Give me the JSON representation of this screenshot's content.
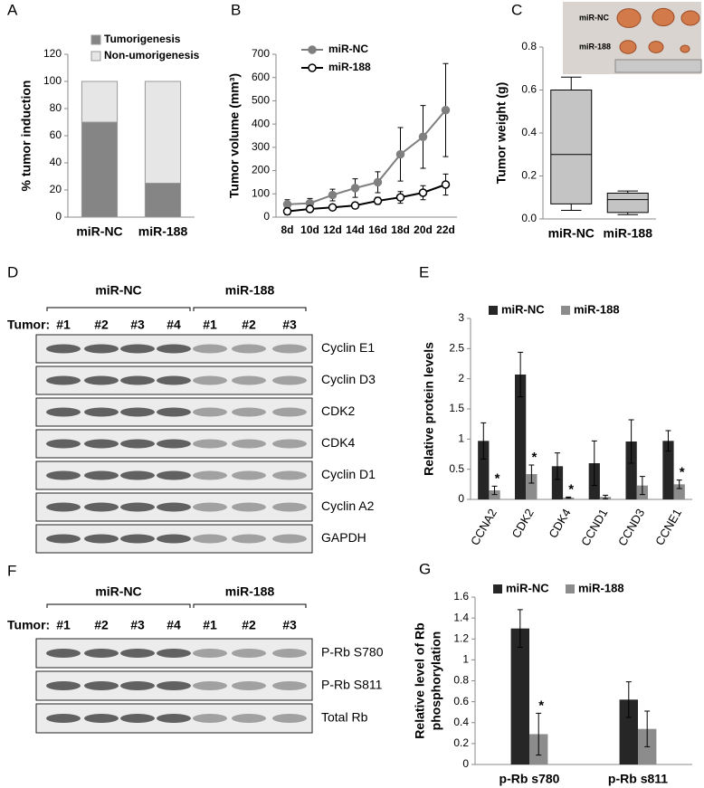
{
  "chart_data": [
    {
      "type": "stacked_bar",
      "panel_label": "A",
      "ylabel": "% tumor induction",
      "categories": [
        "miR-NC",
        "miR-188"
      ],
      "series": [
        {
          "name": "Tumorigenesis",
          "color": "#858585",
          "values": [
            70,
            25
          ]
        },
        {
          "name": "Non-umorigenesis",
          "color": "#e6e6e6",
          "values": [
            30,
            75
          ]
        }
      ],
      "ylim": [
        0,
        120
      ],
      "yticks": [
        0,
        20,
        40,
        60,
        80,
        100,
        120
      ]
    },
    {
      "type": "line",
      "panel_label": "B",
      "ylabel": "Tumor volume (mm³)",
      "categories": [
        "8d",
        "10d",
        "12d",
        "14d",
        "16d",
        "18d",
        "20d",
        "22d"
      ],
      "series": [
        {
          "name": "miR-NC",
          "color": "#7f7f7f",
          "marker_fill": "#7f7f7f",
          "values": [
            55,
            60,
            95,
            125,
            150,
            270,
            345,
            460
          ],
          "errors": [
            20,
            20,
            25,
            40,
            45,
            115,
            135,
            200
          ]
        },
        {
          "name": "miR-188",
          "color": "#000000",
          "marker_fill": "#ffffff",
          "values": [
            25,
            35,
            42,
            50,
            70,
            85,
            105,
            140
          ],
          "errors": [
            15,
            12,
            12,
            12,
            15,
            25,
            30,
            45
          ]
        }
      ],
      "ylim": [
        0,
        700
      ],
      "yticks": [
        0,
        100,
        200,
        300,
        400,
        500,
        600,
        700
      ]
    },
    {
      "type": "box",
      "panel_label": "C",
      "ylabel": "Tumor weight (g)",
      "color": "#c4c4c4",
      "categories": [
        "miR-NC",
        "miR-188"
      ],
      "boxes": [
        {
          "min": 0.04,
          "q1": 0.07,
          "median": 0.3,
          "q3": 0.6,
          "max": 0.66
        },
        {
          "min": 0.02,
          "q1": 0.03,
          "median": 0.09,
          "q3": 0.12,
          "max": 0.13
        }
      ],
      "inset_labels": [
        "miR-NC",
        "miR-188"
      ],
      "ylim": [
        0,
        0.8
      ],
      "yticks": [
        {
          "value": 0,
          "label": "0.0"
        },
        0.2,
        0.4,
        0.6,
        0.8
      ]
    },
    {
      "type": "grouped_bar",
      "panel_label": "E",
      "ylabel": "Relative protein levels",
      "categories": [
        "CCNA2",
        "CDK2",
        "CDK4",
        "CCND1",
        "CCND3",
        "CCNE1"
      ],
      "series": [
        {
          "name": "miR-NC",
          "color": "#262626",
          "values": [
            0.97,
            2.07,
            0.55,
            0.6,
            0.96,
            0.97
          ],
          "errors": [
            0.3,
            0.37,
            0.22,
            0.37,
            0.36,
            0.17
          ]
        },
        {
          "name": "miR-188",
          "color": "#8c8c8c",
          "values": [
            0.15,
            0.42,
            0.03,
            0.04,
            0.23,
            0.25
          ],
          "errors": [
            0.07,
            0.15,
            0.01,
            0.03,
            0.15,
            0.07
          ],
          "significance": {
            "label": "*",
            "flags": [
              true,
              true,
              true,
              false,
              false,
              true
            ]
          }
        }
      ],
      "ylim": [
        0,
        3
      ],
      "yticks": [
        0,
        0.5,
        1,
        1.5,
        2,
        2.5,
        3
      ]
    },
    {
      "type": "grouped_bar",
      "panel_label": "G",
      "ylabel": [
        "Relative level of Rb",
        "phosphorylation"
      ],
      "categories": [
        "p-Rb s780",
        "p-Rb s811"
      ],
      "series": [
        {
          "name": "miR-NC",
          "color": "#262626",
          "values": [
            1.3,
            0.62
          ],
          "errors": [
            0.18,
            0.17
          ]
        },
        {
          "name": "miR-188",
          "color": "#8c8c8c",
          "values": [
            0.29,
            0.34
          ],
          "errors": [
            0.2,
            0.17
          ],
          "significance": {
            "label": "*",
            "flags": [
              true,
              false
            ]
          }
        }
      ],
      "ylim": [
        0,
        1.6
      ],
      "yticks": [
        0,
        0.2,
        0.4,
        0.6,
        0.8,
        1,
        1.2,
        1.4,
        1.6
      ]
    }
  ],
  "blots": [
    {
      "panel_label": "D",
      "groups": [
        "miR-NC",
        "miR-188"
      ],
      "tumor_label": "Tumor:",
      "lanes": [
        "#1",
        "#2",
        "#3",
        "#4",
        "#1",
        "#2",
        "#3"
      ],
      "bands": [
        "Cyclin E1",
        "Cyclin D3",
        "CDK2",
        "CDK4",
        "Cyclin D1",
        "Cyclin A2",
        "GAPDH"
      ]
    },
    {
      "panel_label": "F",
      "groups": [
        "miR-NC",
        "miR-188"
      ],
      "tumor_label": "Tumor:",
      "lanes": [
        "#1",
        "#2",
        "#3",
        "#4",
        "#1",
        "#2",
        "#3"
      ],
      "bands": [
        "P-Rb S780",
        "P-Rb S811",
        "Total Rb"
      ]
    }
  ]
}
